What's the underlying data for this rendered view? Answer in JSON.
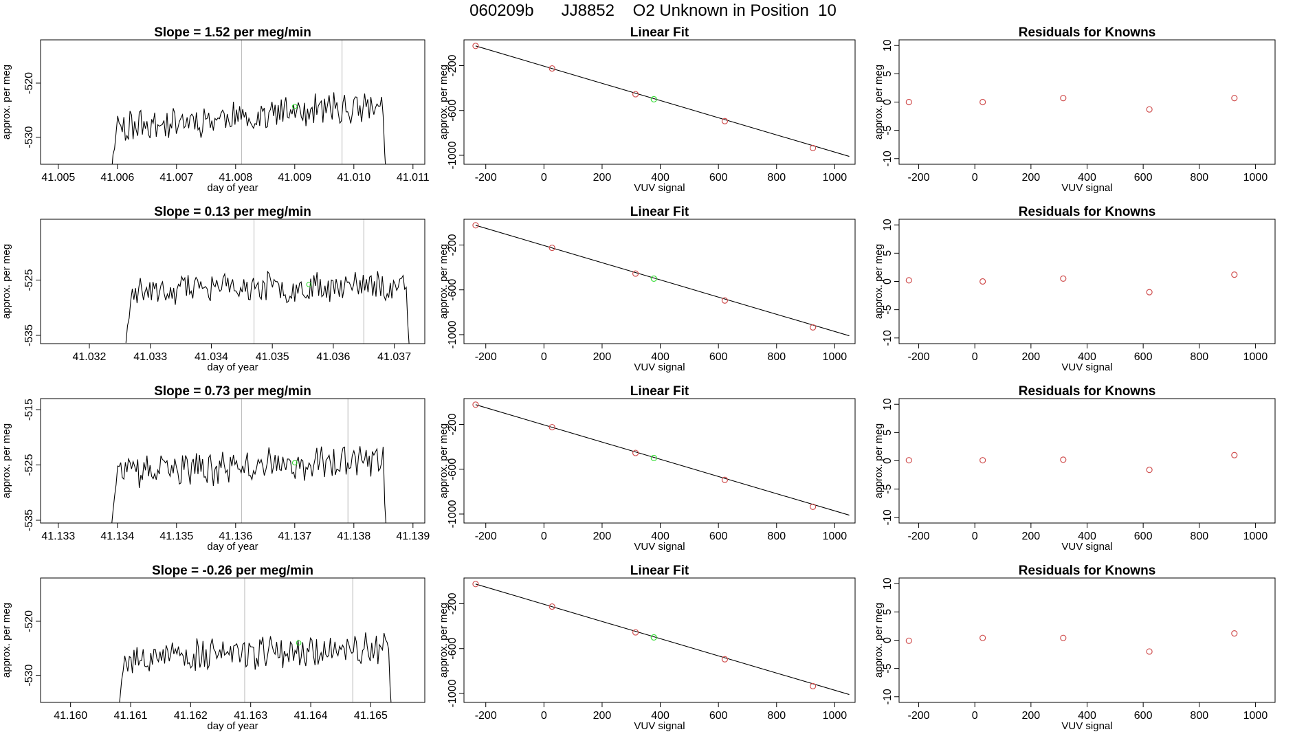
{
  "title": "060209b      JJ8852    O2 Unknown in Position  10",
  "chart_data": [
    {
      "type": "line",
      "title": "Slope =  1.52  per meg/min",
      "xlabel": "day of year",
      "ylabel": "approx. per meg",
      "xlim": [
        41.0047,
        41.0112
      ],
      "ylim": [
        -535,
        -512
      ],
      "xticks": [
        41.005,
        41.006,
        41.007,
        41.008,
        41.009,
        41.01,
        41.011
      ],
      "xtick_labels": [
        "41.005",
        "41.006",
        "41.007",
        "41.008",
        "41.009",
        "41.010",
        "41.011"
      ],
      "yticks": [
        -520,
        -530
      ],
      "ytick_labels": [
        "-520",
        "-530"
      ],
      "x_start": 41.0059,
      "x_end": 41.0106,
      "seed": 11,
      "level": -526.5,
      "trend": 4,
      "noise": 2.6,
      "vlines": [
        41.0081,
        41.0098
      ],
      "marker": {
        "x": 41.009,
        "y": -524.3
      }
    },
    {
      "type": "line",
      "title": "Slope =  0.13  per meg/min",
      "xlabel": "day of year",
      "ylabel": "approx. per meg",
      "xlim": [
        41.0312,
        41.0375
      ],
      "ylim": [
        -536.5,
        -514
      ],
      "xticks": [
        41.032,
        41.033,
        41.034,
        41.035,
        41.036,
        41.037
      ],
      "xtick_labels": [
        "41.032",
        "41.033",
        "41.034",
        "41.035",
        "41.036",
        "41.037"
      ],
      "yticks": [
        -525,
        -535
      ],
      "ytick_labels": [
        "-525",
        "-535"
      ],
      "x_start": 41.0326,
      "x_end": 41.0373,
      "seed": 23,
      "level": -526.5,
      "trend": 1,
      "noise": 2.4,
      "vlines": [
        41.0347,
        41.0365
      ],
      "marker": {
        "x": 41.0356,
        "y": -525.8
      }
    },
    {
      "type": "line",
      "title": "Slope =  0.73  per meg/min",
      "xlabel": "day of year",
      "ylabel": "approx. per meg",
      "xlim": [
        41.1327,
        41.1392
      ],
      "ylim": [
        -535.5,
        -513
      ],
      "xticks": [
        41.133,
        41.134,
        41.135,
        41.136,
        41.137,
        41.138,
        41.139
      ],
      "xtick_labels": [
        "41.133",
        "41.134",
        "41.135",
        "41.136",
        "41.137",
        "41.138",
        "41.139"
      ],
      "yticks": [
        -515,
        -525,
        -535
      ],
      "ytick_labels": [
        "-515",
        "-525",
        "-535"
      ],
      "x_start": 41.1339,
      "x_end": 41.1386,
      "seed": 37,
      "level": -525.5,
      "trend": 2.5,
      "noise": 2.6,
      "vlines": [
        41.1361,
        41.1379
      ],
      "marker": {
        "x": 41.137,
        "y": -524.6
      }
    },
    {
      "type": "line",
      "title": "Slope =  -0.26  per meg/min",
      "xlabel": "day of year",
      "ylabel": "approx. per meg",
      "xlim": [
        41.1595,
        41.1659
      ],
      "ylim": [
        -535,
        -512
      ],
      "xticks": [
        41.16,
        41.161,
        41.162,
        41.163,
        41.164,
        41.165
      ],
      "xtick_labels": [
        "41.160",
        "41.161",
        "41.162",
        "41.163",
        "41.164",
        "41.165"
      ],
      "yticks": [
        -520,
        -530
      ],
      "ytick_labels": [
        "-520",
        "-530"
      ],
      "x_start": 41.1608,
      "x_end": 41.1654,
      "seed": 53,
      "level": -526,
      "trend": 2,
      "noise": 2.7,
      "vlines": [
        41.1629,
        41.1647
      ],
      "marker": {
        "x": 41.1638,
        "y": -524
      }
    },
    {
      "type": "scatter",
      "title": "Linear Fit",
      "xlabel": "VUV signal",
      "ylabel": "approx. per meg",
      "xlim": [
        -275,
        1070
      ],
      "ylim": [
        -1080,
        30
      ],
      "xticks": [
        -200,
        0,
        200,
        400,
        600,
        800,
        1000
      ],
      "xtick_labels": [
        "-200",
        "0",
        "200",
        "400",
        "600",
        "800",
        "1000"
      ],
      "yticks": [
        -200,
        -600,
        -1000
      ],
      "ytick_labels": [
        "-200",
        "-600",
        "-1000"
      ],
      "fit_line": {
        "x": [
          -235,
          1050
        ],
        "y": [
          -24,
          -1010
        ]
      },
      "points": [
        {
          "x": -235,
          "y": -24
        },
        {
          "x": 28,
          "y": -225
        },
        {
          "x": 315,
          "y": -455
        },
        {
          "x": 622,
          "y": -695
        },
        {
          "x": 925,
          "y": -935
        }
      ],
      "unknown": {
        "x": 378,
        "y": -500
      }
    },
    {
      "type": "scatter",
      "title": "Linear Fit",
      "xlabel": "VUV signal",
      "ylabel": "approx. per meg",
      "xlim": [
        -275,
        1070
      ],
      "ylim": [
        -1080,
        30
      ],
      "xticks": [
        -200,
        0,
        200,
        400,
        600,
        800,
        1000
      ],
      "xtick_labels": [
        "-200",
        "0",
        "200",
        "400",
        "600",
        "800",
        "1000"
      ],
      "yticks": [
        -200,
        -600,
        -1000
      ],
      "ytick_labels": [
        "-200",
        "-600",
        "-1000"
      ],
      "fit_line": {
        "x": [
          -235,
          1050
        ],
        "y": [
          -24,
          -1010
        ]
      },
      "points": [
        {
          "x": -235,
          "y": -24
        },
        {
          "x": 28,
          "y": -225
        },
        {
          "x": 315,
          "y": -455
        },
        {
          "x": 622,
          "y": -695
        },
        {
          "x": 925,
          "y": -935
        }
      ],
      "unknown": {
        "x": 378,
        "y": -500
      }
    },
    {
      "type": "scatter",
      "title": "Linear Fit",
      "xlabel": "VUV signal",
      "ylabel": "approx. per meg",
      "xlim": [
        -275,
        1070
      ],
      "ylim": [
        -1080,
        30
      ],
      "xticks": [
        -200,
        0,
        200,
        400,
        600,
        800,
        1000
      ],
      "xtick_labels": [
        "-200",
        "0",
        "200",
        "400",
        "600",
        "800",
        "1000"
      ],
      "yticks": [
        -200,
        -600,
        -1000
      ],
      "ytick_labels": [
        "-200",
        "-600",
        "-1000"
      ],
      "fit_line": {
        "x": [
          -235,
          1050
        ],
        "y": [
          -24,
          -1010
        ]
      },
      "points": [
        {
          "x": -235,
          "y": -24
        },
        {
          "x": 28,
          "y": -225
        },
        {
          "x": 315,
          "y": -455
        },
        {
          "x": 622,
          "y": -695
        },
        {
          "x": 925,
          "y": -935
        }
      ],
      "unknown": {
        "x": 378,
        "y": -500
      }
    },
    {
      "type": "scatter",
      "title": "Linear Fit",
      "xlabel": "VUV signal",
      "ylabel": "approx. per meg",
      "xlim": [
        -275,
        1070
      ],
      "ylim": [
        -1080,
        30
      ],
      "xticks": [
        -200,
        0,
        200,
        400,
        600,
        800,
        1000
      ],
      "xtick_labels": [
        "-200",
        "0",
        "200",
        "400",
        "600",
        "800",
        "1000"
      ],
      "yticks": [
        -200,
        -600,
        -1000
      ],
      "ytick_labels": [
        "-200",
        "-600",
        "-1000"
      ],
      "fit_line": {
        "x": [
          -235,
          1050
        ],
        "y": [
          -24,
          -1010
        ]
      },
      "points": [
        {
          "x": -235,
          "y": -24
        },
        {
          "x": 28,
          "y": -225
        },
        {
          "x": 315,
          "y": -455
        },
        {
          "x": 622,
          "y": -695
        },
        {
          "x": 925,
          "y": -935
        }
      ],
      "unknown": {
        "x": 378,
        "y": -500
      }
    },
    {
      "type": "scatter",
      "title": "Residuals for Knowns",
      "xlabel": "VUV signal",
      "ylabel": "approx. per meg",
      "xlim": [
        -270,
        1070
      ],
      "ylim": [
        -11,
        11
      ],
      "xticks": [
        -200,
        0,
        200,
        400,
        600,
        800,
        1000
      ],
      "xtick_labels": [
        "-200",
        "0",
        "200",
        "400",
        "600",
        "800",
        "1000"
      ],
      "yticks": [
        10,
        5,
        0,
        -5,
        -10
      ],
      "ytick_labels": [
        "10",
        "5",
        "0",
        "-5",
        "-10"
      ],
      "points": [
        {
          "x": -235,
          "y": 0
        },
        {
          "x": 28,
          "y": 0
        },
        {
          "x": 315,
          "y": 0.7
        },
        {
          "x": 622,
          "y": -1.3
        },
        {
          "x": 925,
          "y": 0.7
        }
      ]
    },
    {
      "type": "scatter",
      "title": "Residuals for Knowns",
      "xlabel": "VUV signal",
      "ylabel": "approx. per meg",
      "xlim": [
        -270,
        1070
      ],
      "ylim": [
        -11,
        11
      ],
      "xticks": [
        -200,
        0,
        200,
        400,
        600,
        800,
        1000
      ],
      "xtick_labels": [
        "-200",
        "0",
        "200",
        "400",
        "600",
        "800",
        "1000"
      ],
      "yticks": [
        10,
        5,
        0,
        -5,
        -10
      ],
      "ytick_labels": [
        "10",
        "5",
        "0",
        "-5",
        "-10"
      ],
      "points": [
        {
          "x": -235,
          "y": 0.2
        },
        {
          "x": 28,
          "y": 0
        },
        {
          "x": 315,
          "y": 0.5
        },
        {
          "x": 622,
          "y": -1.9
        },
        {
          "x": 925,
          "y": 1.2
        }
      ]
    },
    {
      "type": "scatter",
      "title": "Residuals for Knowns",
      "xlabel": "VUV signal",
      "ylabel": "approx. per meg",
      "xlim": [
        -270,
        1070
      ],
      "ylim": [
        -11,
        11
      ],
      "xticks": [
        -200,
        0,
        200,
        400,
        600,
        800,
        1000
      ],
      "xtick_labels": [
        "-200",
        "0",
        "200",
        "400",
        "600",
        "800",
        "1000"
      ],
      "yticks": [
        10,
        5,
        0,
        -5,
        -10
      ],
      "ytick_labels": [
        "10",
        "5",
        "0",
        "-5",
        "-10"
      ],
      "points": [
        {
          "x": -235,
          "y": 0.1
        },
        {
          "x": 28,
          "y": 0.1
        },
        {
          "x": 315,
          "y": 0.2
        },
        {
          "x": 622,
          "y": -1.6
        },
        {
          "x": 925,
          "y": 1
        }
      ]
    },
    {
      "type": "scatter",
      "title": "Residuals for Knowns",
      "xlabel": "VUV signal",
      "ylabel": "approx. per meg",
      "xlim": [
        -270,
        1070
      ],
      "ylim": [
        -11,
        11
      ],
      "xticks": [
        -200,
        0,
        200,
        400,
        600,
        800,
        1000
      ],
      "xtick_labels": [
        "-200",
        "0",
        "200",
        "400",
        "600",
        "800",
        "1000"
      ],
      "yticks": [
        10,
        5,
        0,
        -5,
        -10
      ],
      "ytick_labels": [
        "10",
        "5",
        "0",
        "-5",
        "-10"
      ],
      "points": [
        {
          "x": -235,
          "y": -0.1
        },
        {
          "x": 28,
          "y": 0.4
        },
        {
          "x": 315,
          "y": 0.4
        },
        {
          "x": 622,
          "y": -2
        },
        {
          "x": 925,
          "y": 1.2
        }
      ]
    }
  ]
}
